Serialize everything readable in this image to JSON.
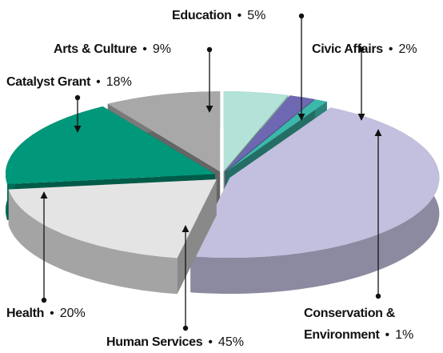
{
  "chart_data": {
    "type": "pie3d",
    "categories": [
      "Education",
      "Civic Affairs",
      "Conservation & Environment",
      "Human Services",
      "Health",
      "Catalyst Grant",
      "Arts & Culture"
    ],
    "values": [
      5,
      2,
      1,
      45,
      20,
      18,
      9
    ],
    "value_labels": [
      "5%",
      "2%",
      "1%",
      "45%",
      "20%",
      "18%",
      "9%"
    ],
    "colors": [
      "#b3e2d8",
      "#6e68b2",
      "#3cb8aa",
      "#c2c0de",
      "#e4e4e4",
      "#00977a",
      "#a8a8a8"
    ]
  }
}
